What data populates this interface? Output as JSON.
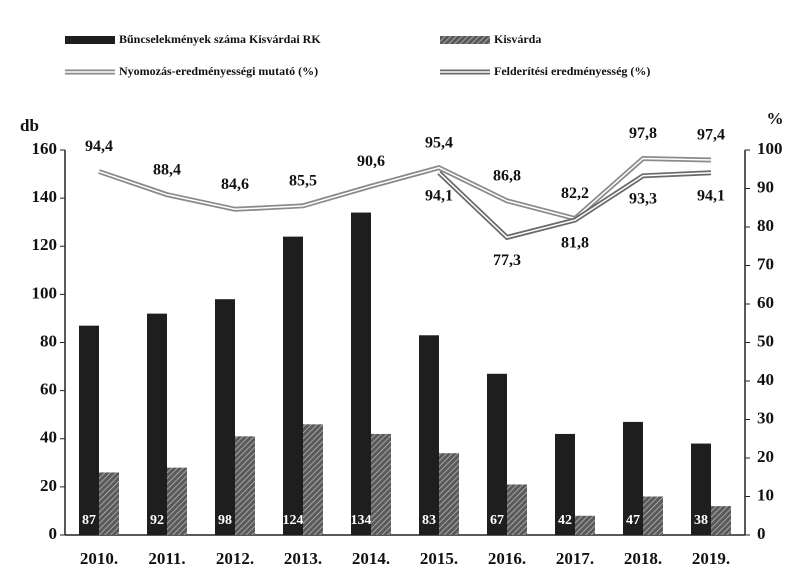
{
  "chart_data": {
    "type": "bar_line",
    "categories": [
      "2010.",
      "2011.",
      "2012.",
      "2013.",
      "2014.",
      "2015.",
      "2016.",
      "2017.",
      "2018.",
      "2019."
    ],
    "series": [
      {
        "name": "Bűncselekmények száma Kisvárdai RK",
        "type": "bar",
        "color": "#1e1e1e",
        "values": [
          87,
          92,
          98,
          124,
          134,
          83,
          67,
          42,
          47,
          38
        ]
      },
      {
        "name": "Kisvárda",
        "type": "bar",
        "color": "#5a5a5a",
        "values": [
          26,
          28,
          41,
          46,
          42,
          34,
          21,
          8,
          16,
          12
        ]
      },
      {
        "name": "Nyomozás-eredményességi mutató (%)",
        "type": "line",
        "axis": "y2",
        "color": "#8a8a8a",
        "values": [
          94.4,
          88.4,
          84.6,
          85.5,
          90.6,
          95.4,
          86.8,
          82.2,
          97.8,
          97.4
        ],
        "value_labels": [
          "94,4",
          "88,4",
          "84,6",
          "85,5",
          "90,6",
          "95,4",
          "86,8",
          "82,2",
          "97,8",
          "97,4"
        ]
      },
      {
        "name": "Felderítési eredményesség (%)",
        "type": "line",
        "axis": "y2",
        "color": "#6a6a6a",
        "values": [
          null,
          null,
          null,
          null,
          null,
          94.1,
          77.3,
          81.8,
          93.3,
          94.1
        ],
        "value_labels": [
          null,
          null,
          null,
          null,
          null,
          "94,1",
          "77,3",
          "81,8",
          "93,3",
          "94,1"
        ]
      }
    ],
    "ylabel": "db",
    "y2label": "%",
    "ylim": [
      0,
      160
    ],
    "yticks": [
      0,
      20,
      40,
      60,
      80,
      100,
      120,
      140,
      160
    ],
    "y2lim": [
      0,
      100
    ],
    "y2ticks": [
      0,
      10,
      20,
      30,
      40,
      50,
      60,
      70,
      80,
      90,
      100
    ]
  }
}
